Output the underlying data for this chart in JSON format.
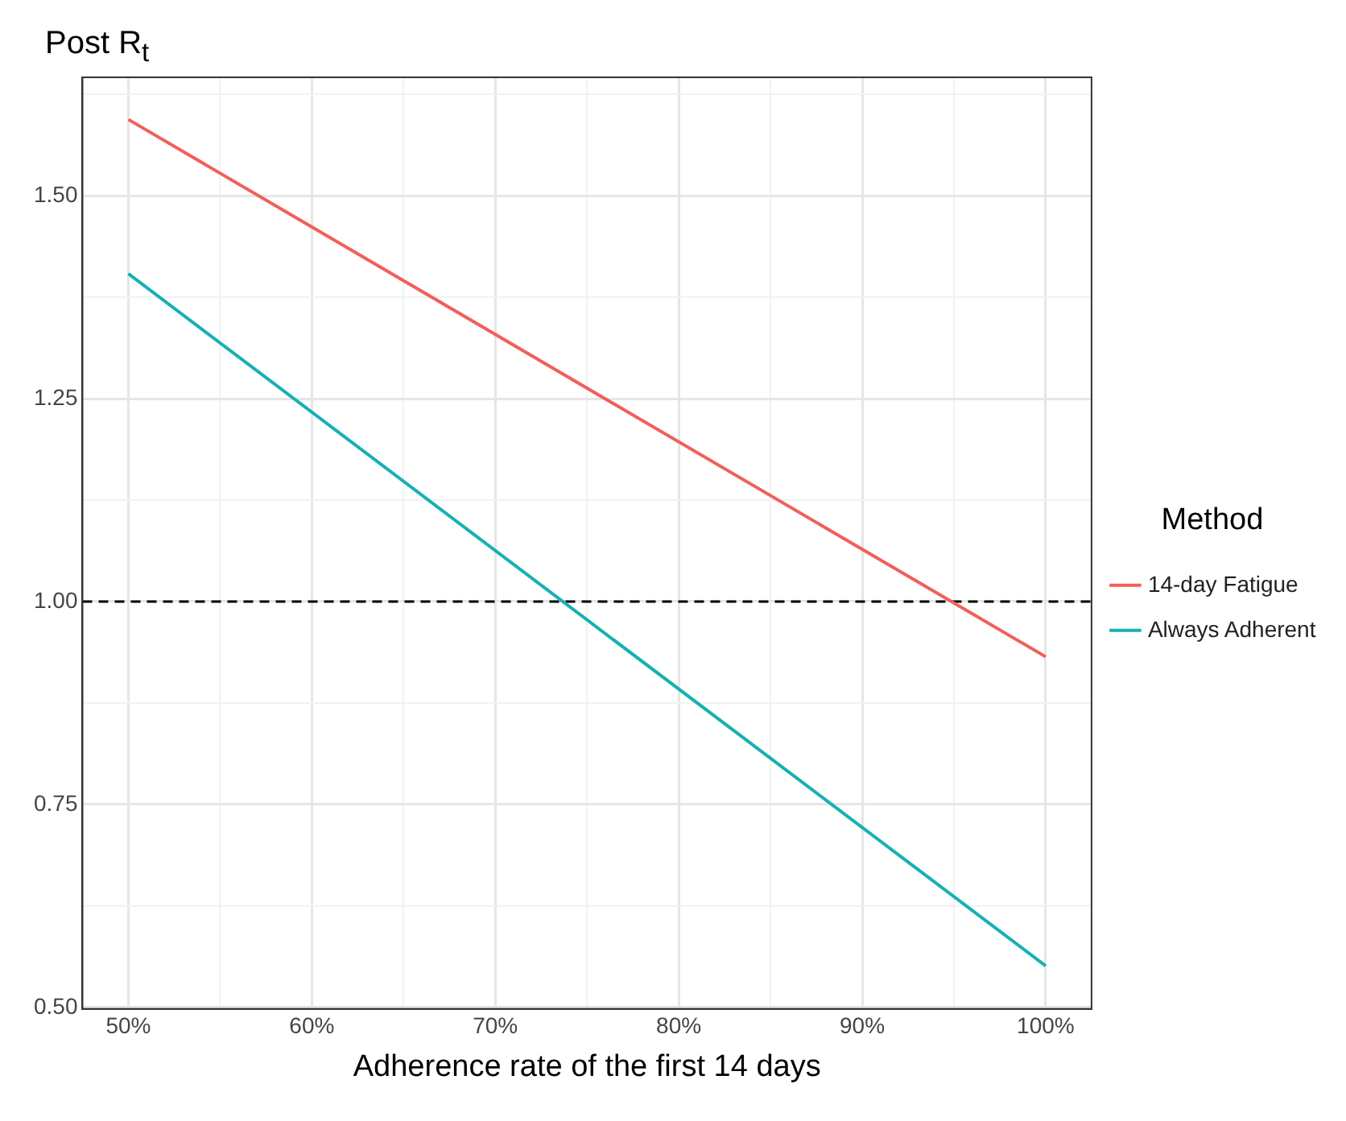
{
  "chart_data": {
    "type": "line",
    "xlabel": "Adherence rate of the first 14 days",
    "ylabel": "Post R$_{t}$",
    "legend_title": "Method",
    "x": [
      50,
      100
    ],
    "series": [
      {
        "name": "14-day Fatigue",
        "color": "#f0605a",
        "values": [
          1.594,
          0.932
        ]
      },
      {
        "name": "Always Adherent",
        "color": "#17b0b4",
        "values": [
          1.404,
          0.551
        ]
      }
    ],
    "xlim": [
      47.5,
      102.5
    ],
    "xticks": [
      {
        "value": 50,
        "label": "50%"
      },
      {
        "value": 55,
        "label": null
      },
      {
        "value": 60,
        "label": "60%"
      },
      {
        "value": 65,
        "label": null
      },
      {
        "value": 70,
        "label": "70%"
      },
      {
        "value": 75,
        "label": null
      },
      {
        "value": 80,
        "label": "80%"
      },
      {
        "value": 85,
        "label": null
      },
      {
        "value": 90,
        "label": "90%"
      },
      {
        "value": 95,
        "label": null
      },
      {
        "value": 100,
        "label": "100%"
      }
    ],
    "ylim": [
      0.498,
      1.646
    ],
    "yticks": [
      {
        "value": 0.5,
        "label": "0.50"
      },
      {
        "value": 0.625,
        "label": null
      },
      {
        "value": 0.75,
        "label": "0.75"
      },
      {
        "value": 0.875,
        "label": null
      },
      {
        "value": 1,
        "label": "1.00"
      },
      {
        "value": 1.125,
        "label": null
      },
      {
        "value": 1.25,
        "label": "1.25"
      },
      {
        "value": 1.375,
        "label": null
      },
      {
        "value": 1.5,
        "label": "1.50"
      },
      {
        "value": 1.625,
        "label": null
      }
    ],
    "ref_lines": [
      {
        "axis": "y",
        "value": 1,
        "color": "#000000",
        "line_style": "dashed"
      }
    ],
    "grid": true,
    "legend": "right",
    "marker": "none",
    "line_style": "solid"
  }
}
